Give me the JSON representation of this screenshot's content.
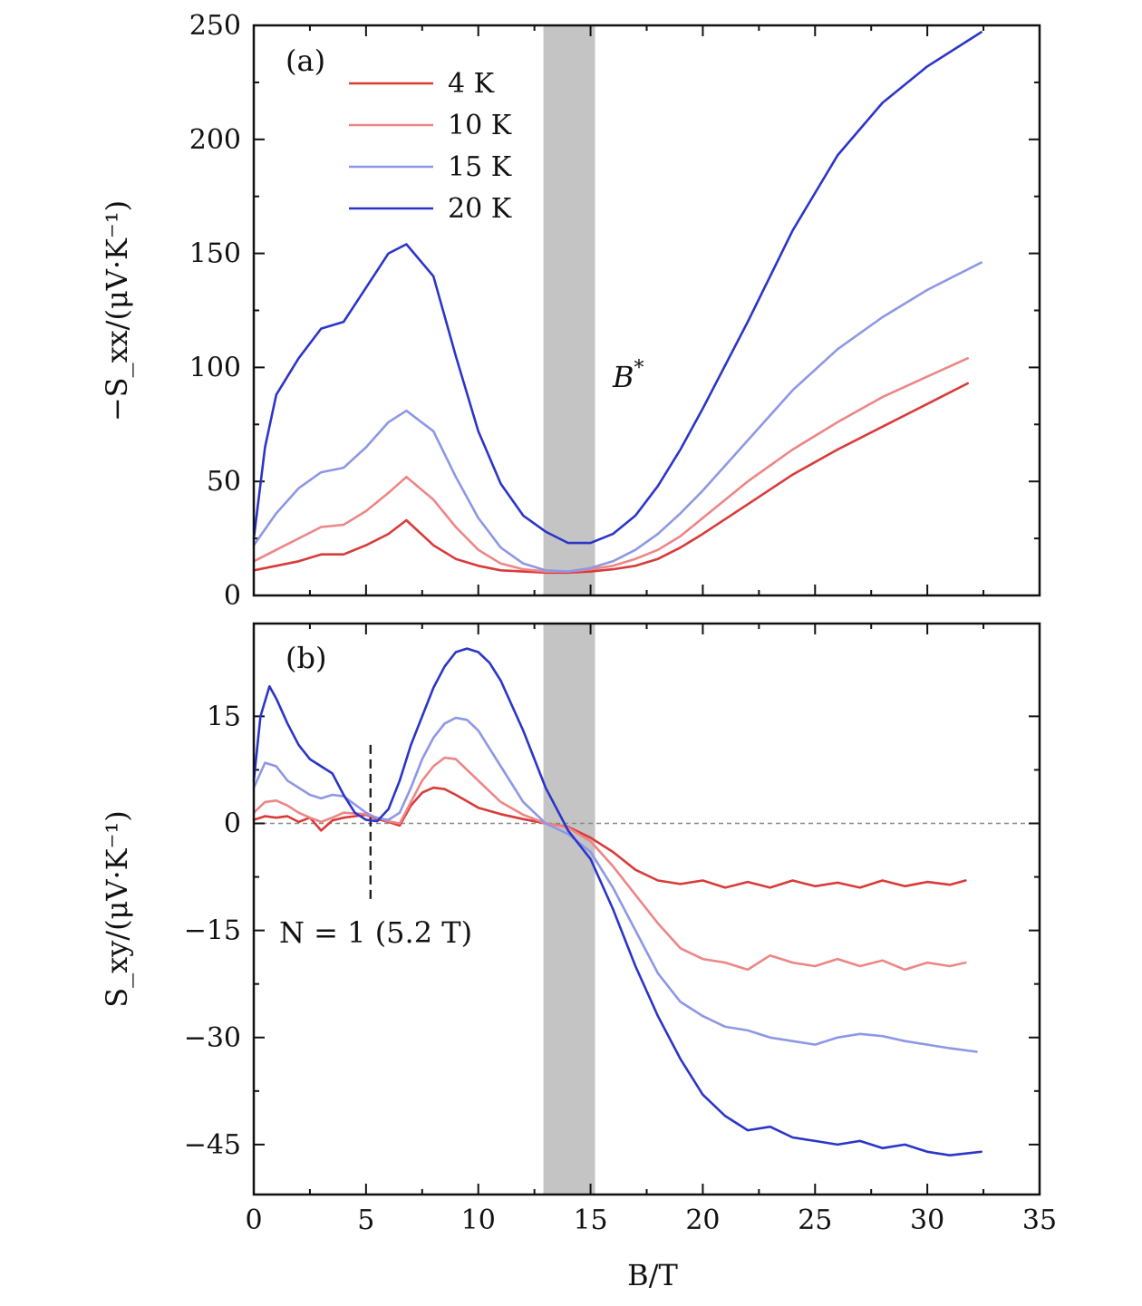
{
  "chart_data": [
    {
      "type": "line",
      "panel_label": "(a)",
      "annotation": "B*",
      "xlabel": "B/T",
      "ylabel": "−S_xx/(μV·K⁻¹)",
      "xlim": [
        0,
        35
      ],
      "ylim": [
        0,
        250
      ],
      "xticks": [
        0,
        5,
        10,
        15,
        20,
        25,
        30,
        35
      ],
      "yticks": [
        0,
        50,
        100,
        150,
        200,
        250
      ],
      "shaded_band": [
        12.9,
        15.2
      ],
      "legend_position": "top-left",
      "series": [
        {
          "name": "4 K",
          "color": "#d93a3a",
          "x": [
            0,
            1,
            2,
            3,
            4,
            5,
            6,
            6.8,
            8,
            9,
            10,
            11,
            12,
            13,
            14,
            15,
            16,
            17,
            18,
            19,
            20,
            22,
            24,
            26,
            28,
            30,
            31.8
          ],
          "y": [
            11,
            13,
            15,
            18,
            18,
            22,
            27,
            33,
            22,
            16,
            13,
            11,
            10.5,
            10,
            10,
            10.5,
            11.5,
            13,
            16,
            21,
            27,
            40,
            53,
            64,
            74,
            84,
            93
          ]
        },
        {
          "name": "10 K",
          "color": "#ee8585",
          "x": [
            0,
            1,
            2,
            3,
            4,
            5,
            6,
            6.8,
            8,
            9,
            10,
            11,
            12,
            13,
            14,
            15,
            16,
            17,
            18,
            19,
            20,
            22,
            24,
            26,
            28,
            30,
            31.8
          ],
          "y": [
            15,
            20,
            25,
            30,
            31,
            37,
            45,
            52,
            42,
            30,
            20,
            14,
            11.5,
            10.5,
            10.5,
            11.5,
            13,
            16,
            20,
            26,
            34,
            50,
            64,
            76,
            87,
            96,
            104
          ]
        },
        {
          "name": "15 K",
          "color": "#8e97e6",
          "x": [
            0,
            1,
            2,
            3,
            4,
            5,
            6,
            6.8,
            8,
            9,
            10,
            11,
            12,
            13,
            14,
            15,
            16,
            17,
            18,
            19,
            20,
            22,
            24,
            26,
            28,
            30,
            32.4
          ],
          "y": [
            22,
            36,
            47,
            54,
            56,
            65,
            76,
            81,
            72,
            52,
            34,
            21,
            14,
            11,
            10.5,
            12,
            15,
            20,
            27,
            36,
            46,
            68,
            90,
            108,
            122,
            134,
            146
          ]
        },
        {
          "name": "20 K",
          "color": "#2b35c8",
          "x": [
            0,
            0.5,
            1,
            2,
            3,
            4,
            5,
            6,
            6.8,
            8,
            9,
            10,
            11,
            12,
            13,
            14,
            15,
            16,
            17,
            18,
            19,
            20,
            22,
            24,
            26,
            28,
            30,
            32.4
          ],
          "y": [
            25,
            65,
            88,
            104,
            117,
            120,
            135,
            150,
            154,
            140,
            105,
            72,
            49,
            35,
            28,
            23,
            23,
            27,
            35,
            48,
            64,
            82,
            120,
            160,
            193,
            216,
            232,
            247
          ]
        }
      ]
    },
    {
      "type": "line",
      "panel_label": "(b)",
      "annotation": "N = 1 (5.2 T)",
      "marker_x": 5.2,
      "xlabel": "B/T",
      "ylabel": "S_xy/(μV·K⁻¹)",
      "xlim": [
        0,
        35
      ],
      "ylim": [
        -52,
        28
      ],
      "xticks": [
        0,
        5,
        10,
        15,
        20,
        25,
        30,
        35
      ],
      "yticks": [
        -45,
        -30,
        -15,
        0,
        15
      ],
      "shaded_band": [
        12.9,
        15.2
      ],
      "zero_line": true,
      "series": [
        {
          "name": "4 K",
          "color": "#d93a3a",
          "x": [
            0,
            0.5,
            1,
            1.5,
            2,
            2.5,
            3,
            3.5,
            4,
            5,
            5.5,
            6,
            6.5,
            7,
            7.5,
            8,
            8.5,
            9,
            10,
            11,
            12,
            13,
            14,
            15,
            16,
            17,
            18,
            19,
            20,
            21,
            22,
            23,
            24,
            25,
            26,
            27,
            28,
            29,
            30,
            31,
            31.7
          ],
          "y": [
            0.5,
            1,
            0.8,
            1,
            0.2,
            0.8,
            -1,
            0.4,
            0.8,
            1.2,
            0.6,
            0.2,
            -0.3,
            2.5,
            4.3,
            5,
            4.8,
            4,
            2.2,
            1.3,
            0.6,
            0,
            -0.5,
            -2,
            -4,
            -6.5,
            -8,
            -8.5,
            -8,
            -9,
            -8.2,
            -9,
            -8,
            -8.8,
            -8.3,
            -9,
            -8,
            -8.8,
            -8.2,
            -8.6,
            -8
          ]
        },
        {
          "name": "10 K",
          "color": "#ee8585",
          "x": [
            0,
            0.5,
            1,
            1.5,
            2,
            2.5,
            3,
            3.5,
            4,
            5,
            5.5,
            6,
            6.5,
            7,
            7.5,
            8,
            8.5,
            9,
            10,
            11,
            12,
            13,
            14,
            15,
            16,
            17,
            18,
            19,
            20,
            21,
            22,
            23,
            24,
            25,
            26,
            27,
            28,
            29,
            30,
            31,
            31.7
          ],
          "y": [
            1.5,
            3,
            3.2,
            2.5,
            1.5,
            0.8,
            0.2,
            0.8,
            1.5,
            1.3,
            0.8,
            0.3,
            0,
            3,
            6,
            8,
            9.2,
            9,
            6,
            3,
            1.2,
            0,
            -0.6,
            -2.5,
            -6,
            -10,
            -14,
            -17.5,
            -19,
            -19.5,
            -20.5,
            -18.5,
            -19.5,
            -20,
            -19,
            -20,
            -19.2,
            -20.5,
            -19.5,
            -20,
            -19.5
          ]
        },
        {
          "name": "15 K",
          "color": "#8e97e6",
          "x": [
            0,
            0.5,
            1,
            1.5,
            2,
            2.5,
            3,
            3.5,
            4,
            5,
            5.5,
            6,
            6.5,
            7,
            7.5,
            8,
            8.5,
            9,
            9.5,
            10,
            11,
            12,
            13,
            14,
            15,
            16,
            17,
            18,
            19,
            20,
            21,
            22,
            23,
            24,
            25,
            26,
            27,
            28,
            29,
            30,
            31,
            32.2
          ],
          "y": [
            5,
            8.5,
            8,
            6,
            5,
            4,
            3.5,
            4,
            3.8,
            1.5,
            0.7,
            0.5,
            1.5,
            5,
            9,
            12,
            14,
            14.8,
            14.5,
            13,
            8,
            3,
            0,
            -1.5,
            -4,
            -9,
            -15,
            -21,
            -25,
            -27,
            -28.5,
            -29,
            -30,
            -30.5,
            -31,
            -30,
            -29.5,
            -29.8,
            -30.5,
            -31,
            -31.5,
            -32
          ]
        },
        {
          "name": "20 K",
          "color": "#2b35c8",
          "x": [
            0,
            0.3,
            0.7,
            1,
            1.5,
            2,
            2.5,
            3,
            3.5,
            4,
            4.5,
            5,
            5.5,
            6,
            6.5,
            7,
            7.5,
            8,
            8.5,
            9,
            9.5,
            10,
            10.5,
            11,
            12,
            13,
            14,
            15,
            16,
            17,
            18,
            19,
            20,
            21,
            22,
            23,
            24,
            25,
            26,
            27,
            28,
            29,
            30,
            31,
            32.4
          ],
          "y": [
            6,
            15,
            19.2,
            17.5,
            14,
            11,
            9,
            8,
            7,
            4,
            1.5,
            0.5,
            0.3,
            2,
            6,
            11,
            15,
            19,
            22,
            24,
            24.5,
            24,
            22.5,
            20,
            13,
            5,
            -1,
            -5,
            -12,
            -20,
            -27,
            -33,
            -38,
            -41,
            -43,
            -42.5,
            -44,
            -44.5,
            -45,
            -44.5,
            -45.5,
            -45,
            -46,
            -46.5,
            -46
          ]
        }
      ]
    }
  ]
}
